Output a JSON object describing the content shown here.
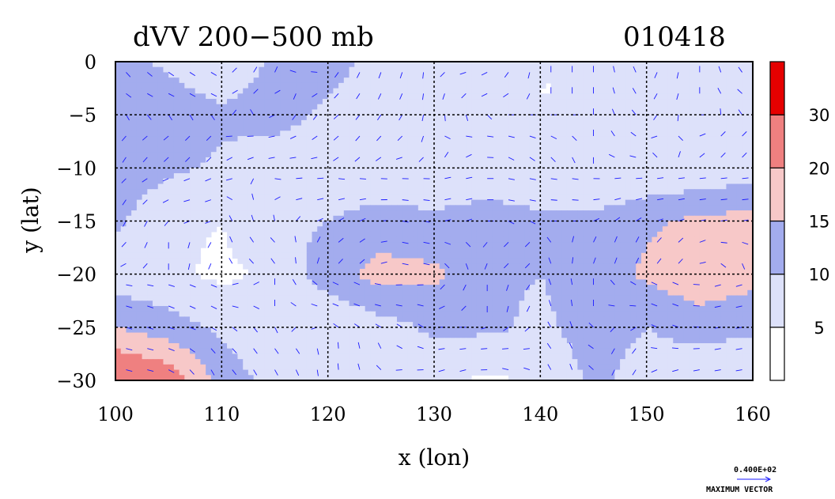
{
  "chart_data": {
    "type": "heatmap",
    "title": "dVV 200−500 mb",
    "date_label": "010418",
    "xlabel": "x (lon)",
    "ylabel": "y (lat)",
    "xlim": [
      100,
      160
    ],
    "ylim": [
      -30,
      0
    ],
    "xticks": [
      100,
      110,
      120,
      130,
      140,
      150,
      160
    ],
    "yticks": [
      0,
      -5,
      -10,
      -15,
      -20,
      -25,
      -30
    ],
    "xtick_labels": [
      "100",
      "110",
      "120",
      "130",
      "140",
      "150",
      "160"
    ],
    "ytick_labels": [
      "0",
      "−5",
      "−10",
      "−15",
      "−20",
      "−25",
      "−30"
    ],
    "grid": true,
    "colorbar": {
      "levels": [
        0,
        5,
        10,
        15,
        20,
        30,
        40
      ],
      "tick_labels": [
        "5",
        "10",
        "15",
        "20",
        "30"
      ],
      "colors": [
        "#ffffff",
        "#dde1fa",
        "#a3acee",
        "#f7c8c8",
        "#ef8080",
        "#e50000"
      ]
    },
    "vector_legend": {
      "value": "0.400E+02",
      "label": "MAXIMUM VECTOR"
    },
    "field": {
      "lon": [
        100,
        105,
        110,
        115,
        120,
        125,
        130,
        135,
        140,
        145,
        150,
        155,
        160
      ],
      "lat": [
        0,
        -5,
        -10,
        -15,
        -20,
        -25,
        -30
      ],
      "values": [
        [
          12,
          9,
          6,
          11,
          12,
          8,
          6,
          6,
          5,
          5,
          7,
          5,
          9
        ],
        [
          14,
          13,
          11,
          12,
          9,
          7,
          6,
          5,
          5,
          5,
          6,
          5,
          6
        ],
        [
          13,
          11,
          9,
          7,
          7,
          6,
          6,
          7,
          6,
          5,
          5,
          6,
          7
        ],
        [
          11,
          6,
          5,
          9,
          10,
          12,
          11,
          12,
          11,
          11,
          14,
          16,
          17
        ],
        [
          7,
          6,
          4,
          6,
          13,
          17,
          16,
          11,
          10,
          12,
          16,
          19,
          17
        ],
        [
          15,
          12,
          9,
          6,
          5,
          8,
          11,
          11,
          9,
          12,
          10,
          12,
          11
        ],
        [
          27,
          24,
          13,
          8,
          5,
          7,
          6,
          4,
          6,
          11,
          8,
          6,
          5
        ]
      ]
    }
  }
}
